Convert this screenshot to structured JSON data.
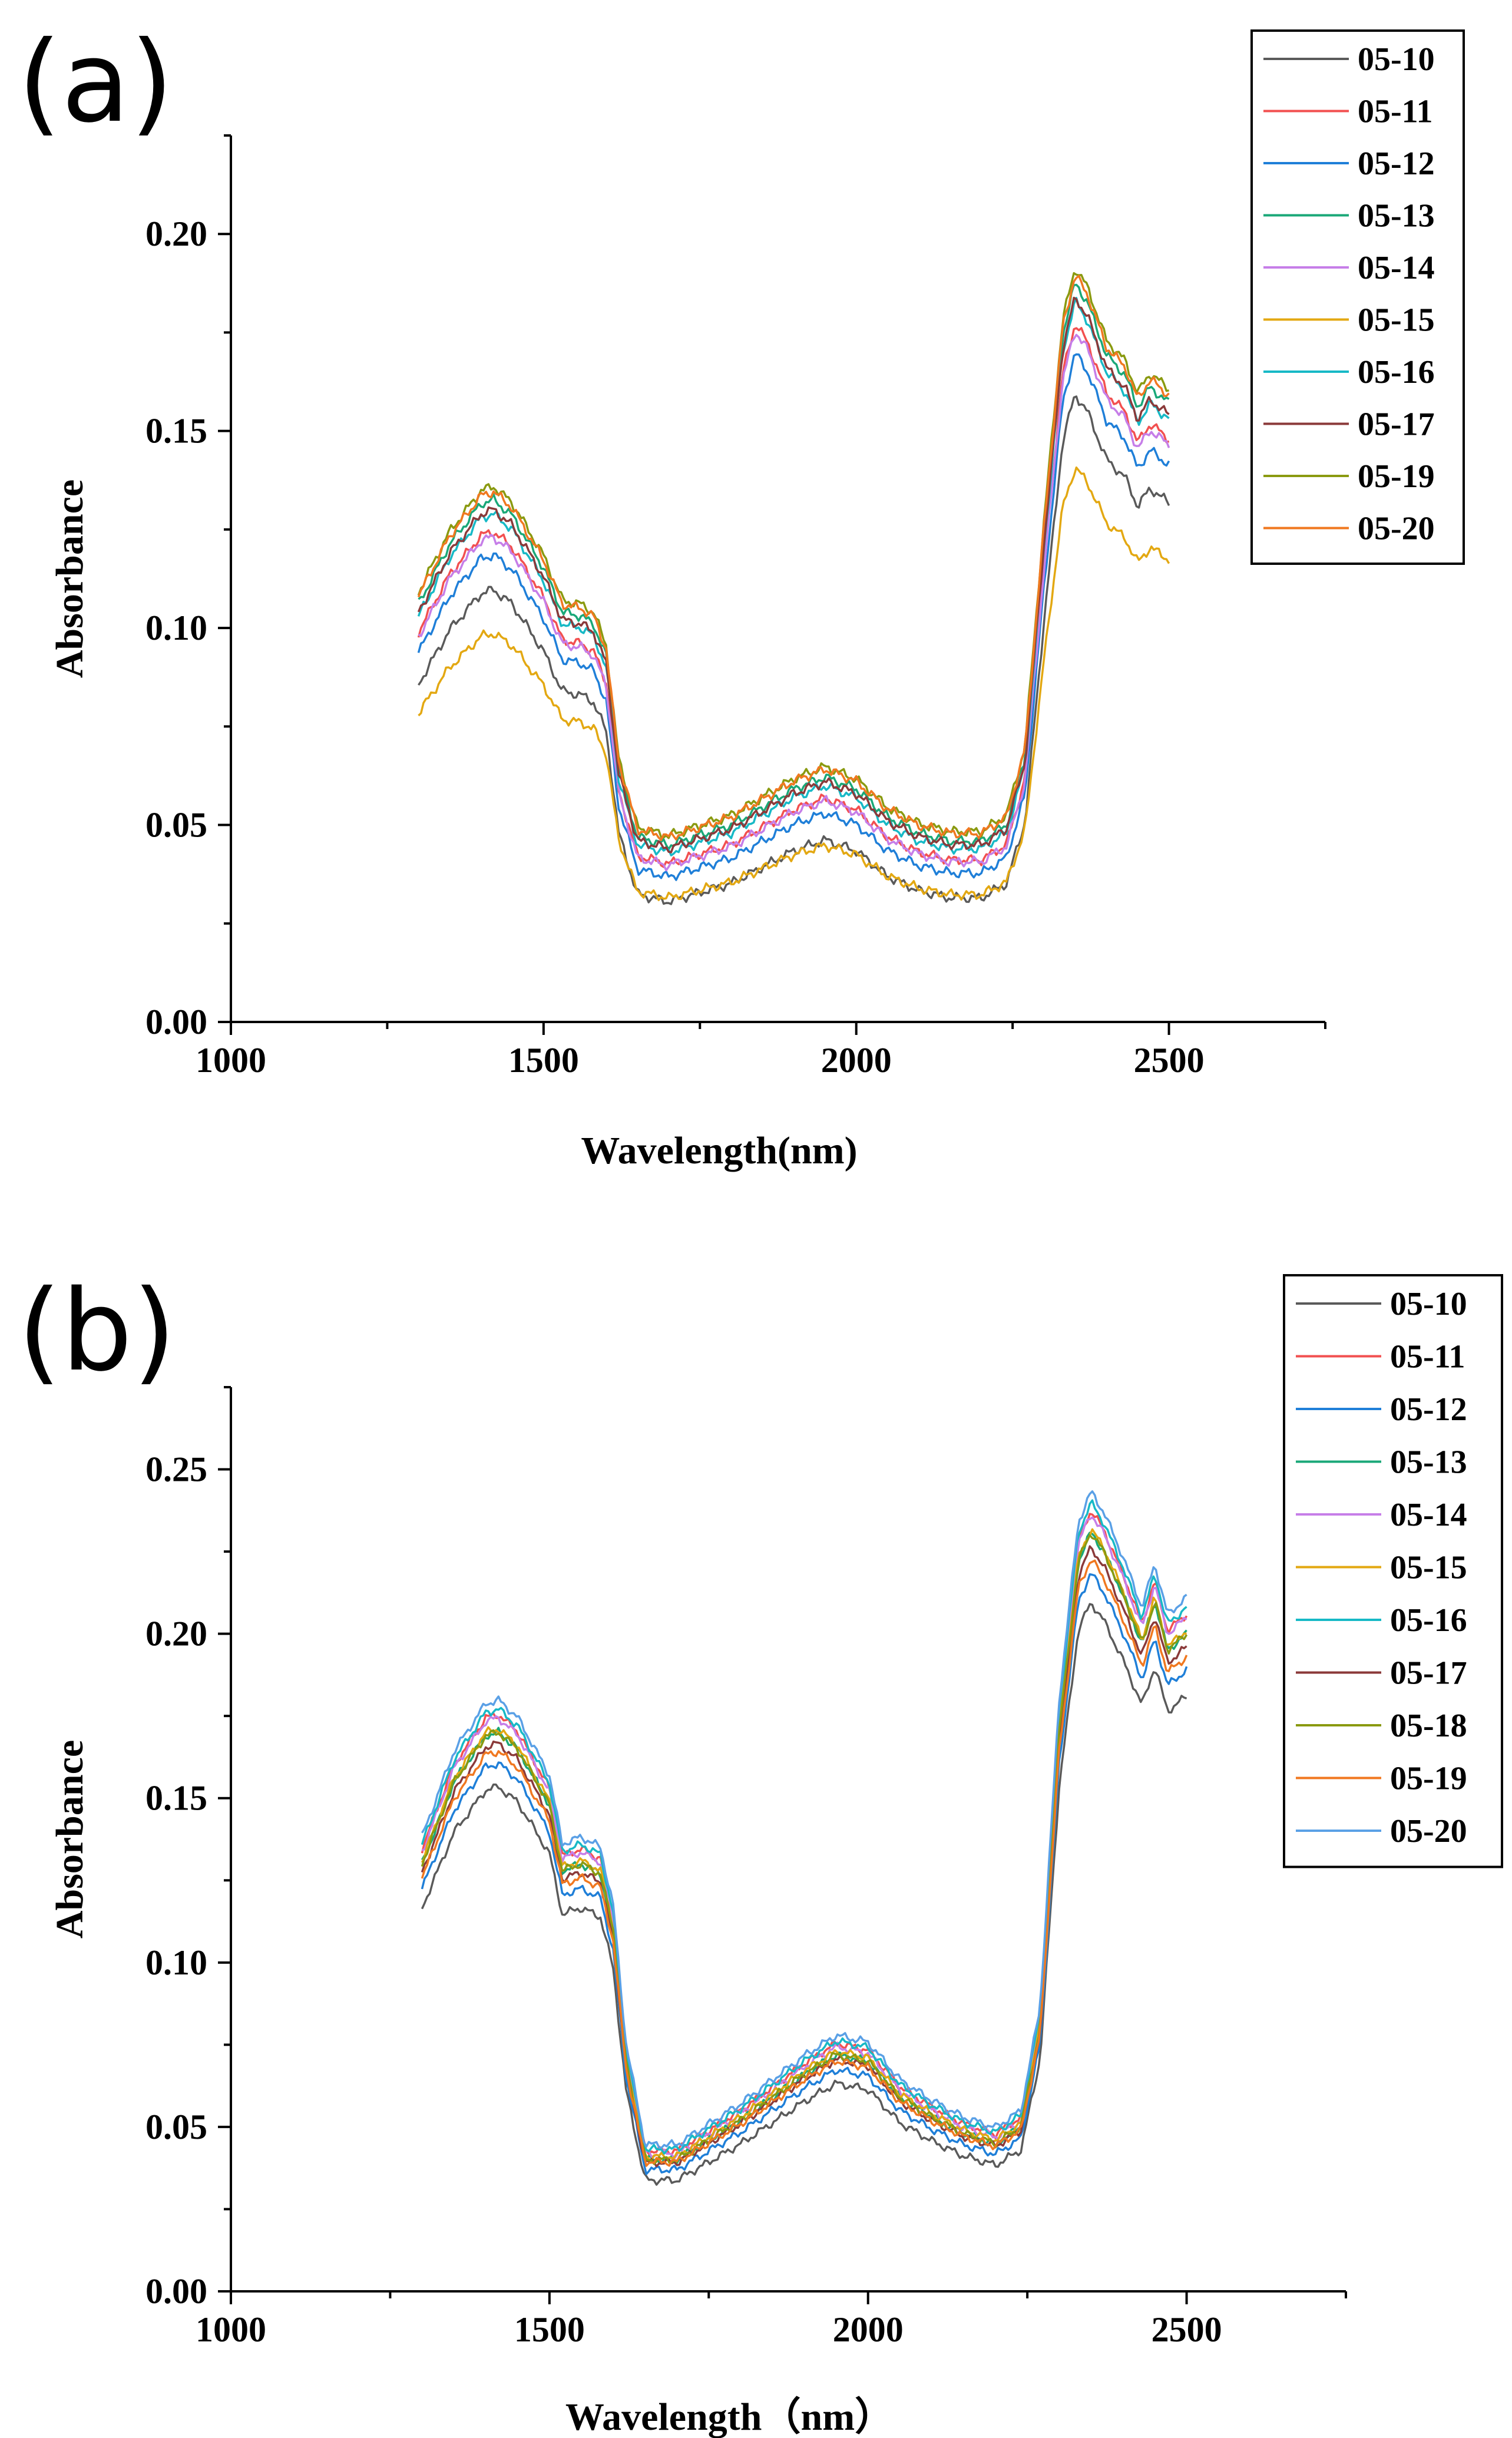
{
  "chart_data": [
    {
      "panel": "(a)",
      "type": "line",
      "xlabel": "Wavelength(nm)",
      "ylabel": "Absorbance",
      "xlim": [
        1000,
        2750
      ],
      "ylim": [
        0,
        0.225
      ],
      "xticks": [
        "1000",
        "1500",
        "2000",
        "2500"
      ],
      "yticks": [
        "0.00",
        "0.05",
        "0.10",
        "0.15",
        "0.20"
      ],
      "legend_position": "top-right",
      "series": [
        {
          "name": "05-10",
          "color": "#5a5a5a",
          "scale": 0.92,
          "offset": -0.009
        },
        {
          "name": "05-11",
          "color": "#f25050",
          "scale": 0.98,
          "offset": -0.002
        },
        {
          "name": "05-12",
          "color": "#1f7fd8",
          "scale": 0.95,
          "offset": -0.004
        },
        {
          "name": "05-13",
          "color": "#1aa878",
          "scale": 1.02,
          "offset": 0.001
        },
        {
          "name": "05-14",
          "color": "#c67ee8",
          "scale": 0.97,
          "offset": -0.002
        },
        {
          "name": "05-15",
          "color": "#e3a812",
          "scale": 0.78,
          "offset": -0.002
        },
        {
          "name": "05-16",
          "color": "#17b9c6",
          "scale": 1.0,
          "offset": 0.0
        },
        {
          "name": "05-17",
          "color": "#8b3a3a",
          "scale": 1.0,
          "offset": 0.001
        },
        {
          "name": "05-19",
          "color": "#8a9a10",
          "scale": 1.03,
          "offset": 0.003
        },
        {
          "name": "05-20",
          "color": "#f07820",
          "scale": 1.02,
          "offset": 0.003
        }
      ],
      "base_curve": {
        "x": [
          1300,
          1350,
          1400,
          1420,
          1450,
          1500,
          1530,
          1560,
          1580,
          1600,
          1620,
          1650,
          1700,
          1800,
          1900,
          1950,
          2000,
          2050,
          2100,
          2150,
          2200,
          2240,
          2270,
          2300,
          2330,
          2350,
          2370,
          2400,
          2430,
          2450,
          2470,
          2500
        ],
        "y": [
          0.103,
          0.118,
          0.128,
          0.129,
          0.125,
          0.112,
          0.101,
          0.1,
          0.098,
          0.09,
          0.062,
          0.045,
          0.043,
          0.048,
          0.057,
          0.06,
          0.057,
          0.05,
          0.046,
          0.044,
          0.044,
          0.048,
          0.065,
          0.12,
          0.17,
          0.183,
          0.178,
          0.165,
          0.16,
          0.152,
          0.157,
          0.153
        ]
      }
    },
    {
      "panel": "(b)",
      "type": "line",
      "xlabel": "Wavelength（nm）",
      "ylabel": "Absorbance",
      "xlim": [
        1000,
        2750
      ],
      "ylim": [
        0,
        0.275
      ],
      "xticks": [
        "1000",
        "1500",
        "2000",
        "2500"
      ],
      "yticks": [
        "0.00",
        "0.05",
        "0.10",
        "0.15",
        "0.20",
        "0.25"
      ],
      "legend_position": "top-right",
      "series": [
        {
          "name": "05-10",
          "color": "#5a5a5a",
          "scale": 0.92,
          "offset": -0.003
        },
        {
          "name": "05-11",
          "color": "#f25050",
          "scale": 1.02,
          "offset": 0.002
        },
        {
          "name": "05-12",
          "color": "#1f7fd8",
          "scale": 0.95,
          "offset": -0.001
        },
        {
          "name": "05-13",
          "color": "#1aa878",
          "scale": 1.0,
          "offset": 0.0
        },
        {
          "name": "05-14",
          "color": "#c67ee8",
          "scale": 1.02,
          "offset": 0.001
        },
        {
          "name": "05-15",
          "color": "#e3a812",
          "scale": 1.0,
          "offset": 0.001
        },
        {
          "name": "05-16",
          "color": "#17b9c6",
          "scale": 1.03,
          "offset": 0.002
        },
        {
          "name": "05-17",
          "color": "#8b3a3a",
          "scale": 0.98,
          "offset": 0.0
        },
        {
          "name": "05-18",
          "color": "#8a9a10",
          "scale": 1.0,
          "offset": 0.0
        },
        {
          "name": "05-19",
          "color": "#f07820",
          "scale": 0.96,
          "offset": 0.001
        },
        {
          "name": "05-20",
          "color": "#5aa0e6",
          "scale": 1.04,
          "offset": 0.003
        }
      ],
      "base_curve": {
        "x": [
          1300,
          1350,
          1400,
          1420,
          1450,
          1500,
          1520,
          1550,
          1580,
          1600,
          1620,
          1650,
          1700,
          1800,
          1900,
          1950,
          2000,
          2050,
          2100,
          2150,
          2200,
          2240,
          2270,
          2300,
          2330,
          2350,
          2370,
          2400,
          2430,
          2450,
          2470,
          2500
        ],
        "y": [
          0.13,
          0.155,
          0.169,
          0.17,
          0.165,
          0.148,
          0.128,
          0.13,
          0.127,
          0.11,
          0.07,
          0.04,
          0.04,
          0.052,
          0.066,
          0.072,
          0.07,
          0.059,
          0.053,
          0.048,
          0.045,
          0.05,
          0.08,
          0.17,
          0.222,
          0.231,
          0.225,
          0.212,
          0.197,
          0.21,
          0.195,
          0.2
        ]
      }
    }
  ]
}
